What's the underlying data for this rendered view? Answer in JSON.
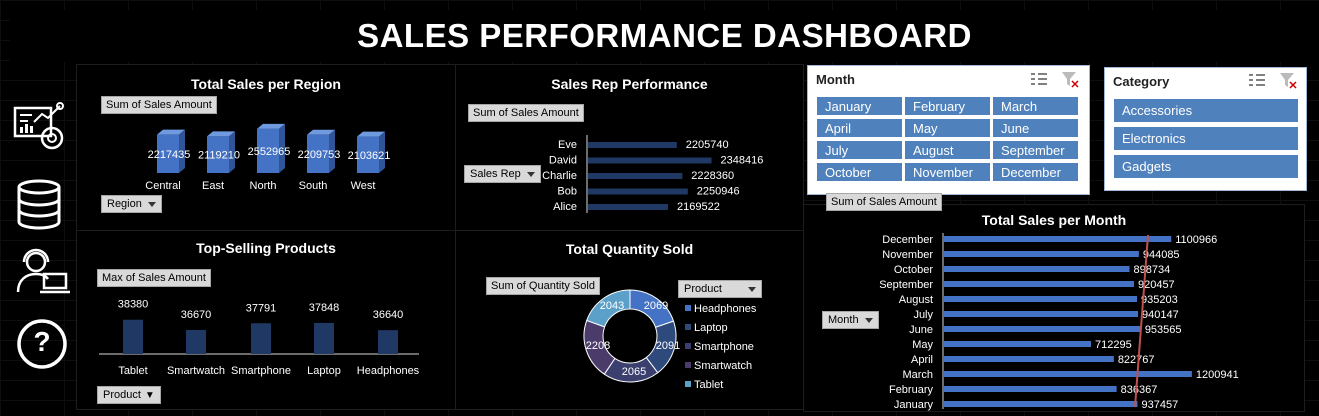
{
  "header": {
    "title": "SALES PERFORMANCE DASHBOARD"
  },
  "colors": {
    "bar_blue": "#4472c4",
    "dark_bar": "#1f3864",
    "slicer_blue": "#4f81bd",
    "trend_red": "#c0504d"
  },
  "sidebar": {
    "icons": [
      "analytics-icon",
      "database-icon",
      "support-agent-icon",
      "help-icon"
    ],
    "help_glyph": "?"
  },
  "region_chart": {
    "title": "Total Sales per Region",
    "field": "Sum of Sales Amount",
    "axis_field": "Region",
    "categories": [
      "Central",
      "East",
      "North",
      "South",
      "West"
    ],
    "labels": [
      "2217435",
      "2119210",
      "2552965",
      "2209753",
      "2103621"
    ]
  },
  "rep_chart": {
    "title": "Sales Rep Performance",
    "field": "Sum of Sales Amount",
    "axis_field": "Sales Rep",
    "categories": [
      "Eve",
      "David",
      "Charlie",
      "Bob",
      "Alice"
    ],
    "labels": [
      "2205740",
      "2348416",
      "2228360",
      "2250946",
      "2169522"
    ]
  },
  "products_chart": {
    "title": "Top-Selling Products",
    "field": "Max of Sales Amount",
    "axis_field": "Product",
    "categories": [
      "Tablet",
      "Smartwatch",
      "Smartphone",
      "Laptop",
      "Headphones"
    ],
    "labels": [
      "38380",
      "36670",
      "37791",
      "37848",
      "36640"
    ]
  },
  "quantity_chart": {
    "title": "Total Quantity Sold",
    "field": "Sum of Quantity Sold",
    "legend_field": "Product",
    "legend": [
      "Headphones",
      "Laptop",
      "Smartphone",
      "Smartwatch",
      "Tablet"
    ],
    "labels": [
      "2069",
      "2091",
      "2065",
      "2208",
      "2043"
    ]
  },
  "month_chart": {
    "title": "Total Sales per Month",
    "field": "Sum of Sales Amount",
    "axis_field": "Month",
    "categories": [
      "December",
      "November",
      "October",
      "September",
      "August",
      "July",
      "June",
      "May",
      "April",
      "March",
      "February",
      "January"
    ],
    "labels": [
      "1100966",
      "944085",
      "898734",
      "920457",
      "935203",
      "940147",
      "953565",
      "712295",
      "822767",
      "1200941",
      "836367",
      "937457"
    ]
  },
  "chart_data": [
    {
      "type": "bar",
      "title": "Total Sales per Region",
      "categories": [
        "Central",
        "East",
        "North",
        "South",
        "West"
      ],
      "values": [
        2217435,
        2119210,
        2552965,
        2209753,
        2103621
      ],
      "ylim": [
        0,
        2600000
      ]
    },
    {
      "type": "bar",
      "orientation": "horizontal",
      "title": "Sales Rep Performance",
      "categories": [
        "Eve",
        "David",
        "Charlie",
        "Bob",
        "Alice"
      ],
      "values": [
        2205740,
        2348416,
        2228360,
        2250946,
        2169522
      ],
      "xlim": [
        0,
        2400000
      ]
    },
    {
      "type": "bar",
      "title": "Top-Selling Products",
      "categories": [
        "Tablet",
        "Smartwatch",
        "Smartphone",
        "Laptop",
        "Headphones"
      ],
      "values": [
        38380,
        36670,
        37791,
        37848,
        36640
      ],
      "ylim": [
        0,
        40000
      ]
    },
    {
      "type": "pie",
      "donut": true,
      "title": "Total Quantity Sold",
      "categories": [
        "Headphones",
        "Laptop",
        "Smartphone",
        "Smartwatch",
        "Tablet"
      ],
      "values": [
        2069,
        2091,
        2065,
        2208,
        2043
      ]
    },
    {
      "type": "bar",
      "orientation": "horizontal",
      "title": "Total Sales per Month",
      "categories": [
        "December",
        "November",
        "October",
        "September",
        "August",
        "July",
        "June",
        "May",
        "April",
        "March",
        "February",
        "January"
      ],
      "values": [
        1100966,
        944085,
        898734,
        920457,
        935203,
        940147,
        953565,
        712295,
        822767,
        1200941,
        836367,
        937457
      ],
      "xlim": [
        0,
        1250000
      ],
      "trendline": true
    }
  ],
  "month_slicer": {
    "header": "Month",
    "items": [
      "January",
      "February",
      "March",
      "April",
      "May",
      "June",
      "July",
      "August",
      "September",
      "October",
      "November",
      "December"
    ]
  },
  "category_slicer": {
    "header": "Category",
    "items": [
      "Accessories",
      "Electronics",
      "Gadgets"
    ]
  }
}
